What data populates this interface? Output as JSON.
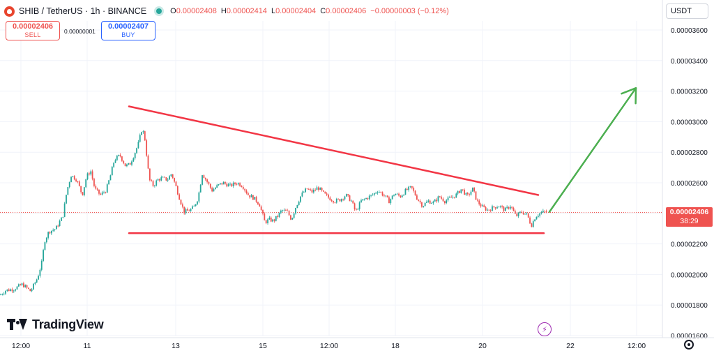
{
  "header": {
    "symbol": "SHIB / TetherUS · 1h · BINANCE",
    "open_label": "O",
    "open": "0.00002408",
    "high_label": "H",
    "high": "0.00002414",
    "low_label": "L",
    "low": "0.00002404",
    "close_label": "C",
    "close": "0.00002406",
    "change": "−0.00000003 (−0.12%)"
  },
  "trade": {
    "sell_price": "0.00002406",
    "sell_label": "SELL",
    "spread": "0.00000001",
    "buy_price": "0.00002407",
    "buy_label": "BUY"
  },
  "currency": "USDT",
  "last_price": {
    "value": "0.00002406",
    "countdown": "38:29"
  },
  "brand": "TradingView",
  "colors": {
    "up": "#26a69a",
    "down": "#ef5350",
    "trendline": "#f23645",
    "projection": "#4caf50"
  },
  "chart_data": {
    "type": "candlestick",
    "y_axis": {
      "ticks": [
        "0.00003600",
        "0.00003400",
        "0.00003200",
        "0.00003000",
        "0.00002800",
        "0.00002600",
        "0.00002400",
        "0.00002200",
        "0.00002000",
        "0.00001800",
        "0.00001600"
      ],
      "ylim": [
        1.6e-05,
        3.66e-05
      ]
    },
    "x_axis": {
      "ticks": [
        "12:00",
        "11",
        "13",
        "15",
        "12:00",
        "18",
        "20",
        "22",
        "12:00"
      ]
    },
    "grid": true,
    "price_path": [
      [
        0,
        1.865e-05
      ],
      [
        8,
        1.895e-05
      ],
      [
        20,
        1.905e-05
      ],
      [
        32,
        1.935e-05
      ],
      [
        44,
        1.89e-05
      ],
      [
        54,
        1.98e-05
      ],
      [
        60,
        2.08e-05
      ],
      [
        64,
        2.22e-05
      ],
      [
        70,
        2.28e-05
      ],
      [
        80,
        2.3e-05
      ],
      [
        90,
        2.38e-05
      ],
      [
        96,
        2.55e-05
      ],
      [
        102,
        2.65e-05
      ],
      [
        110,
        2.62e-05
      ],
      [
        118,
        2.52e-05
      ],
      [
        124,
        2.64e-05
      ],
      [
        130,
        2.68e-05
      ],
      [
        136,
        2.56e-05
      ],
      [
        144,
        2.52e-05
      ],
      [
        152,
        2.55e-05
      ],
      [
        158,
        2.64e-05
      ],
      [
        164,
        2.75e-05
      ],
      [
        172,
        2.78e-05
      ],
      [
        180,
        2.71e-05
      ],
      [
        186,
        2.72e-05
      ],
      [
        192,
        2.78e-05
      ],
      [
        198,
        2.85e-05
      ],
      [
        204,
        2.96e-05
      ],
      [
        208,
        2.88e-05
      ],
      [
        214,
        2.62e-05
      ],
      [
        220,
        2.58e-05
      ],
      [
        226,
        2.62e-05
      ],
      [
        232,
        2.63e-05
      ],
      [
        240,
        2.62e-05
      ],
      [
        246,
        2.66e-05
      ],
      [
        252,
        2.58e-05
      ],
      [
        258,
        2.49e-05
      ],
      [
        264,
        2.41e-05
      ],
      [
        272,
        2.42e-05
      ],
      [
        278,
        2.44e-05
      ],
      [
        284,
        2.5e-05
      ],
      [
        290,
        2.66e-05
      ],
      [
        298,
        2.6e-05
      ],
      [
        304,
        2.55e-05
      ],
      [
        312,
        2.58e-05
      ],
      [
        320,
        2.6e-05
      ],
      [
        330,
        2.58e-05
      ],
      [
        340,
        2.6e-05
      ],
      [
        348,
        2.58e-05
      ],
      [
        356,
        2.52e-05
      ],
      [
        364,
        2.5e-05
      ],
      [
        372,
        2.46e-05
      ],
      [
        380,
        2.34e-05
      ],
      [
        386,
        2.36e-05
      ],
      [
        392,
        2.35e-05
      ],
      [
        398,
        2.38e-05
      ],
      [
        404,
        2.42e-05
      ],
      [
        412,
        2.41e-05
      ],
      [
        418,
        2.36e-05
      ],
      [
        424,
        2.44e-05
      ],
      [
        432,
        2.52e-05
      ],
      [
        440,
        2.56e-05
      ],
      [
        448,
        2.54e-05
      ],
      [
        456,
        2.57e-05
      ],
      [
        464,
        2.53e-05
      ],
      [
        472,
        2.5e-05
      ],
      [
        480,
        2.48e-05
      ],
      [
        488,
        2.49e-05
      ],
      [
        496,
        2.52e-05
      ],
      [
        504,
        2.48e-05
      ],
      [
        510,
        2.41e-05
      ],
      [
        518,
        2.48e-05
      ],
      [
        526,
        2.5e-05
      ],
      [
        534,
        2.52e-05
      ],
      [
        542,
        2.55e-05
      ],
      [
        550,
        2.52e-05
      ],
      [
        558,
        2.48e-05
      ],
      [
        566,
        2.53e-05
      ],
      [
        574,
        2.51e-05
      ],
      [
        582,
        2.55e-05
      ],
      [
        590,
        2.57e-05
      ],
      [
        598,
        2.5e-05
      ],
      [
        606,
        2.45e-05
      ],
      [
        614,
        2.48e-05
      ],
      [
        622,
        2.47e-05
      ],
      [
        630,
        2.51e-05
      ],
      [
        638,
        2.48e-05
      ],
      [
        646,
        2.5e-05
      ],
      [
        654,
        2.52e-05
      ],
      [
        662,
        2.56e-05
      ],
      [
        670,
        2.51e-05
      ],
      [
        678,
        2.56e-05
      ],
      [
        684,
        2.48e-05
      ],
      [
        692,
        2.44e-05
      ],
      [
        700,
        2.42e-05
      ],
      [
        708,
        2.44e-05
      ],
      [
        716,
        2.45e-05
      ],
      [
        724,
        2.42e-05
      ],
      [
        732,
        2.45e-05
      ],
      [
        740,
        2.38e-05
      ],
      [
        748,
        2.41e-05
      ],
      [
        756,
        2.39e-05
      ],
      [
        762,
        2.32e-05
      ],
      [
        768,
        2.38e-05
      ],
      [
        774,
        2.4e-05
      ],
      [
        780,
        2.41e-05
      ],
      [
        784,
        2.406e-05
      ]
    ],
    "annotations": {
      "descending_trendline": {
        "from": [
          185,
          3.1e-05
        ],
        "to": [
          772,
          2.52e-05
        ]
      },
      "support_line": {
        "from": [
          185,
          2.27e-05
        ],
        "to": [
          780,
          2.27e-05
        ]
      },
      "projection_arrow": {
        "from": [
          788,
          2.41e-05
        ],
        "to": [
          912,
          3.22e-05
        ]
      },
      "last_price_line": 2.406e-05
    }
  }
}
